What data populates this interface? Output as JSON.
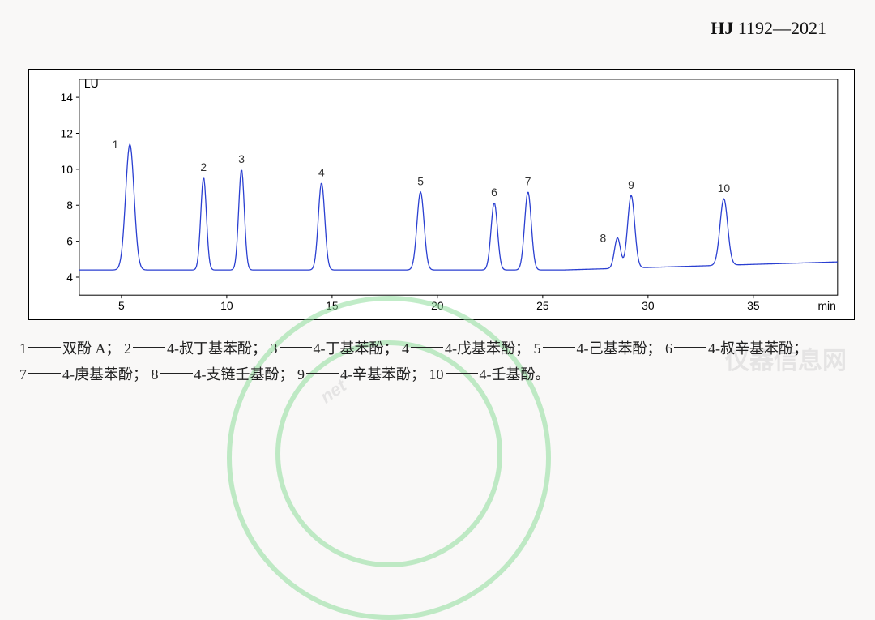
{
  "header": {
    "code_prefix": "HJ",
    "code_rest": " 1192—2021"
  },
  "chart": {
    "type": "chromatogram-line",
    "xlim": [
      3,
      39
    ],
    "ylim": [
      3,
      15
    ],
    "xticks": [
      5,
      10,
      15,
      20,
      25,
      30,
      35
    ],
    "yticks": [
      4,
      6,
      8,
      10,
      12,
      14
    ],
    "xaxis_label": "min",
    "yaxis_label": "LU",
    "axis_fontsize": 14,
    "axis_font": "Arial",
    "line_color": "#2a3fd1",
    "line_width": 1.3,
    "background_color": "#ffffff",
    "border_color": "#000000",
    "tick_length": 4,
    "baseline_y": 4.4,
    "baseline_end_y": 4.85,
    "baseline_drift_start_x": 26,
    "peaks": [
      {
        "id": 1,
        "x": 5.4,
        "height": 7.0,
        "hw": 0.42,
        "label": "1",
        "label_side": "left",
        "label_dy": -0.3
      },
      {
        "id": 2,
        "x": 8.9,
        "height": 5.15,
        "hw": 0.28,
        "label": "2",
        "label_side": "top",
        "label_dy": 0
      },
      {
        "id": 3,
        "x": 10.7,
        "height": 5.6,
        "hw": 0.28,
        "label": "3",
        "label_side": "top",
        "label_dy": 0
      },
      {
        "id": 4,
        "x": 14.5,
        "height": 4.85,
        "hw": 0.32,
        "label": "4",
        "label_side": "top",
        "label_dy": 0
      },
      {
        "id": 5,
        "x": 19.2,
        "height": 4.35,
        "hw": 0.35,
        "label": "5",
        "label_side": "top",
        "label_dy": 0
      },
      {
        "id": 6,
        "x": 22.7,
        "height": 3.75,
        "hw": 0.32,
        "label": "6",
        "label_side": "top",
        "label_dy": 0
      },
      {
        "id": 7,
        "x": 24.3,
        "height": 4.35,
        "hw": 0.33,
        "label": "7",
        "label_side": "top",
        "label_dy": 0
      },
      {
        "id": 8,
        "x": 28.55,
        "height": 1.7,
        "hw": 0.3,
        "label": "8",
        "label_side": "left",
        "label_dy": -0.3
      },
      {
        "id": 9,
        "x": 29.2,
        "height": 4.05,
        "hw": 0.35,
        "label": "9",
        "label_side": "top",
        "label_dy": 0
      },
      {
        "id": 10,
        "x": 33.6,
        "height": 3.7,
        "hw": 0.38,
        "label": "10",
        "label_side": "top",
        "label_dy": 0
      }
    ],
    "peak_label_fontsize": 14,
    "peak_label_color": "#333333"
  },
  "legend": {
    "items": [
      {
        "num": "1",
        "name": "双酚 A；"
      },
      {
        "num": "2",
        "name": "4-叔丁基苯酚；"
      },
      {
        "num": "3",
        "name": "4-丁基苯酚；"
      },
      {
        "num": "4",
        "name": "4-戊基苯酚；"
      },
      {
        "num": "5",
        "name": "4-己基苯酚；"
      },
      {
        "num": "6",
        "name": "4-叔辛基苯酚；"
      },
      {
        "num": "7",
        "name": "4-庚基苯酚；"
      },
      {
        "num": "8",
        "name": "4-支链壬基酚；"
      },
      {
        "num": "9",
        "name": "4-辛基苯酚；"
      },
      {
        "num": "10",
        "name": "4-壬基酚。"
      }
    ],
    "fontsize": 18,
    "color": "#222222",
    "break_after": 6
  },
  "watermark": {
    "brand_text": "仪器信息网",
    "logo_text": "net",
    "arc_color": "#8edc9a"
  }
}
